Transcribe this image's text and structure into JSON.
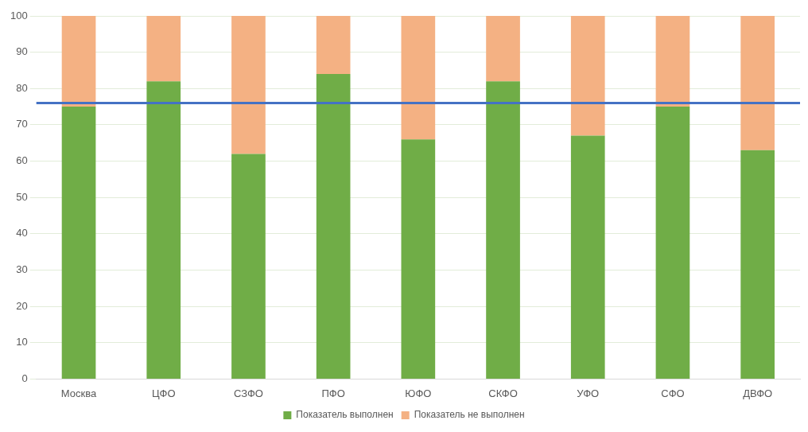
{
  "chart_data": {
    "type": "bar",
    "stacked": true,
    "categories": [
      "Москва",
      "ЦФО",
      "СЗФО",
      "ПФО",
      "ЮФО",
      "СКФО",
      "УФО",
      "СФО",
      "ДВФО"
    ],
    "series": [
      {
        "name": "Показатель выполнен",
        "color": "#70ad47",
        "values": [
          75,
          82,
          62,
          84,
          66,
          82,
          67,
          75,
          63
        ]
      },
      {
        "name": "Показатель не выполнен",
        "color": "#f4b183",
        "values": [
          25,
          18,
          38,
          16,
          34,
          18,
          33,
          25,
          37
        ]
      }
    ],
    "ylim": [
      0,
      100
    ],
    "yticks": [
      0,
      10,
      20,
      30,
      40,
      50,
      60,
      70,
      80,
      90,
      100
    ],
    "grid": "y",
    "legend": "bottom",
    "ref_lines": [
      {
        "axis": "y",
        "value": 76,
        "color": "#4472c4"
      }
    ]
  }
}
